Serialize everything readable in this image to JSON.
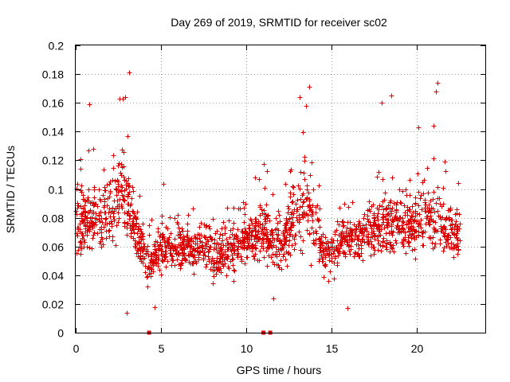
{
  "chart_data": {
    "type": "scatter",
    "title": "Day 269 of 2019, SRMTID for receiver sc02",
    "xlabel": "GPS time / hours",
    "ylabel": "SRMTID / TECUs",
    "xlim": [
      0,
      24
    ],
    "ylim": [
      0,
      0.2
    ],
    "xticks": [
      0,
      5,
      10,
      15,
      20
    ],
    "xtick_labels": [
      "0",
      "5",
      "10",
      "15",
      "20"
    ],
    "yticks": [
      0,
      0.02,
      0.04,
      0.06,
      0.08,
      0.1,
      0.12,
      0.14,
      0.16,
      0.18,
      0.2
    ],
    "ytick_labels": [
      "0",
      "0.02",
      "0.04",
      "0.06",
      "0.08",
      "0.1",
      "0.12",
      "0.14",
      "0.16",
      "0.18",
      "0.2"
    ],
    "grid": true,
    "marker": "plus",
    "color": "#dd0000",
    "series": [
      {
        "name": "SRMTID",
        "data_description": "approximately 3000 scattered measurements from 0 to 22.5 hours",
        "trend_anchors": [
          {
            "x": 0.0,
            "median": 0.075,
            "spread": 0.025
          },
          {
            "x": 1.0,
            "median": 0.08,
            "spread": 0.03
          },
          {
            "x": 2.0,
            "median": 0.085,
            "spread": 0.03
          },
          {
            "x": 2.7,
            "median": 0.1,
            "spread": 0.035
          },
          {
            "x": 3.5,
            "median": 0.075,
            "spread": 0.025
          },
          {
            "x": 4.3,
            "median": 0.045,
            "spread": 0.015
          },
          {
            "x": 5.0,
            "median": 0.06,
            "spread": 0.02
          },
          {
            "x": 7.0,
            "median": 0.06,
            "spread": 0.02
          },
          {
            "x": 8.5,
            "median": 0.055,
            "spread": 0.02
          },
          {
            "x": 10.0,
            "median": 0.065,
            "spread": 0.02
          },
          {
            "x": 11.0,
            "median": 0.07,
            "spread": 0.025
          },
          {
            "x": 12.0,
            "median": 0.06,
            "spread": 0.02
          },
          {
            "x": 13.0,
            "median": 0.085,
            "spread": 0.03
          },
          {
            "x": 13.7,
            "median": 0.09,
            "spread": 0.035
          },
          {
            "x": 14.5,
            "median": 0.055,
            "spread": 0.02
          },
          {
            "x": 16.0,
            "median": 0.065,
            "spread": 0.02
          },
          {
            "x": 18.0,
            "median": 0.075,
            "spread": 0.025
          },
          {
            "x": 19.5,
            "median": 0.075,
            "spread": 0.025
          },
          {
            "x": 21.0,
            "median": 0.08,
            "spread": 0.03
          },
          {
            "x": 22.5,
            "median": 0.065,
            "spread": 0.02
          }
        ],
        "notable_points": [
          {
            "x": 3.15,
            "y": 0.181
          },
          {
            "x": 2.9,
            "y": 0.164
          },
          {
            "x": 2.75,
            "y": 0.163
          },
          {
            "x": 0.8,
            "y": 0.159
          },
          {
            "x": 13.7,
            "y": 0.171
          },
          {
            "x": 13.1,
            "y": 0.164
          },
          {
            "x": 13.5,
            "y": 0.158
          },
          {
            "x": 17.95,
            "y": 0.16
          },
          {
            "x": 18.5,
            "y": 0.165
          },
          {
            "x": 21.2,
            "y": 0.174
          },
          {
            "x": 21.1,
            "y": 0.168
          },
          {
            "x": 20.1,
            "y": 0.143
          },
          {
            "x": 3.0,
            "y": 0.014
          },
          {
            "x": 4.6,
            "y": 0.018
          },
          {
            "x": 15.9,
            "y": 0.017
          },
          {
            "x": 11.6,
            "y": 0.024
          }
        ]
      },
      {
        "name": "zero markers",
        "description": "points plotted at zero on the x-axis",
        "points": [
          {
            "x": 4.3,
            "y": 0
          },
          {
            "x": 11.0,
            "y": 0
          },
          {
            "x": 11.4,
            "y": 0
          }
        ]
      }
    ]
  }
}
